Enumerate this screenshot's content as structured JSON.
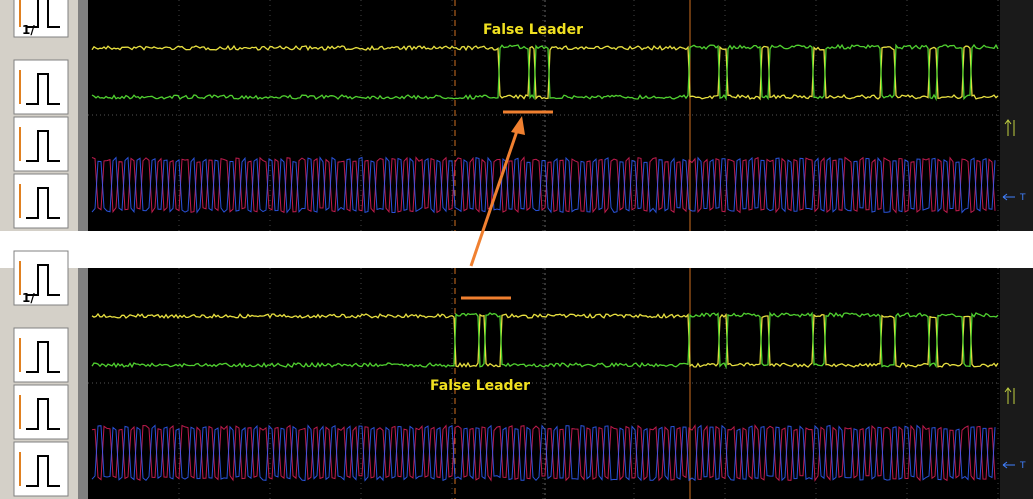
{
  "panels": [
    {
      "annotation": "False Leader",
      "icon_label": "1/",
      "trigger_label": "T"
    },
    {
      "annotation": "False Leader",
      "icon_label": "1/",
      "trigger_label": "T"
    }
  ]
}
